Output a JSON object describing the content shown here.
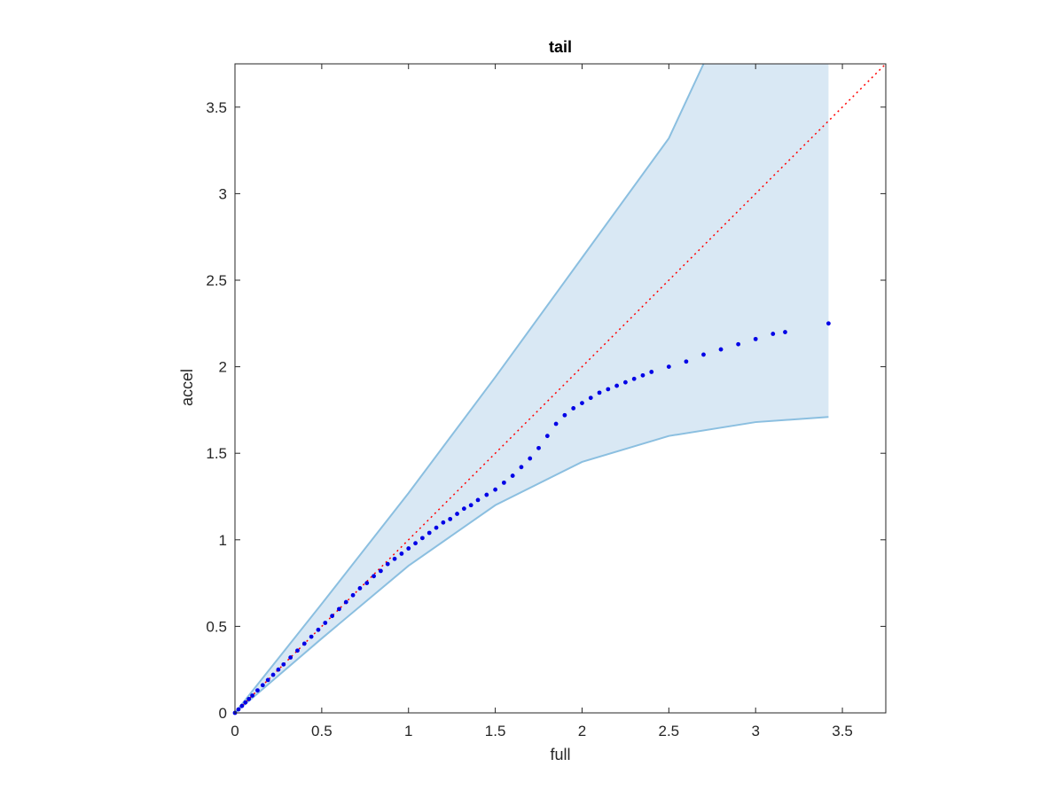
{
  "chart_data": {
    "type": "scatter",
    "title": "tail",
    "xlabel": "full",
    "ylabel": "accel",
    "xlim": [
      0,
      3.75
    ],
    "ylim": [
      0,
      3.75
    ],
    "xticks": [
      0,
      0.5,
      1,
      1.5,
      2,
      2.5,
      3,
      3.5
    ],
    "xtick_labels": [
      "0",
      "0.5",
      "1",
      "1.5",
      "2",
      "2.5",
      "3",
      "3.5"
    ],
    "yticks": [
      0,
      0.5,
      1,
      1.5,
      2,
      2.5,
      3,
      3.5
    ],
    "ytick_labels": [
      "0",
      "0.5",
      "1",
      "1.5",
      "2",
      "2.5",
      "3",
      "3.5"
    ],
    "grid": false,
    "colors": {
      "points": "#0000e6",
      "reference": "#ff0000",
      "band_fill": "#d9e8f4",
      "band_edge": "#8bbfe0",
      "axes": "#262626"
    },
    "band": {
      "upper": [
        [
          0,
          0
        ],
        [
          0.5,
          0.63
        ],
        [
          1,
          1.27
        ],
        [
          1.5,
          1.94
        ],
        [
          2,
          2.63
        ],
        [
          2.5,
          3.32
        ],
        [
          2.7,
          3.75
        ],
        [
          3.42,
          3.75
        ]
      ],
      "lower": [
        [
          0,
          0
        ],
        [
          0.5,
          0.43
        ],
        [
          1,
          0.85
        ],
        [
          1.5,
          1.2
        ],
        [
          2,
          1.45
        ],
        [
          2.5,
          1.6
        ],
        [
          3,
          1.68
        ],
        [
          3.42,
          1.71
        ]
      ]
    },
    "reference_line": [
      [
        0,
        0
      ],
      [
        3.75,
        3.75
      ]
    ],
    "points": [
      [
        0.0,
        0.0
      ],
      [
        0.02,
        0.02
      ],
      [
        0.04,
        0.04
      ],
      [
        0.06,
        0.06
      ],
      [
        0.08,
        0.08
      ],
      [
        0.1,
        0.1
      ],
      [
        0.13,
        0.13
      ],
      [
        0.16,
        0.16
      ],
      [
        0.19,
        0.19
      ],
      [
        0.22,
        0.22
      ],
      [
        0.25,
        0.25
      ],
      [
        0.28,
        0.28
      ],
      [
        0.32,
        0.32
      ],
      [
        0.36,
        0.36
      ],
      [
        0.4,
        0.4
      ],
      [
        0.44,
        0.44
      ],
      [
        0.48,
        0.48
      ],
      [
        0.52,
        0.52
      ],
      [
        0.56,
        0.56
      ],
      [
        0.6,
        0.6
      ],
      [
        0.64,
        0.64
      ],
      [
        0.68,
        0.68
      ],
      [
        0.72,
        0.72
      ],
      [
        0.76,
        0.75
      ],
      [
        0.8,
        0.79
      ],
      [
        0.84,
        0.82
      ],
      [
        0.88,
        0.86
      ],
      [
        0.92,
        0.89
      ],
      [
        0.96,
        0.92
      ],
      [
        1.0,
        0.95
      ],
      [
        1.04,
        0.98
      ],
      [
        1.08,
        1.01
      ],
      [
        1.12,
        1.04
      ],
      [
        1.16,
        1.07
      ],
      [
        1.2,
        1.1
      ],
      [
        1.24,
        1.12
      ],
      [
        1.28,
        1.15
      ],
      [
        1.32,
        1.18
      ],
      [
        1.36,
        1.2
      ],
      [
        1.4,
        1.23
      ],
      [
        1.45,
        1.26
      ],
      [
        1.5,
        1.29
      ],
      [
        1.55,
        1.33
      ],
      [
        1.6,
        1.37
      ],
      [
        1.65,
        1.42
      ],
      [
        1.7,
        1.47
      ],
      [
        1.75,
        1.53
      ],
      [
        1.8,
        1.6
      ],
      [
        1.85,
        1.67
      ],
      [
        1.9,
        1.72
      ],
      [
        1.95,
        1.76
      ],
      [
        2.0,
        1.79
      ],
      [
        2.05,
        1.82
      ],
      [
        2.1,
        1.85
      ],
      [
        2.15,
        1.87
      ],
      [
        2.2,
        1.89
      ],
      [
        2.25,
        1.91
      ],
      [
        2.3,
        1.93
      ],
      [
        2.35,
        1.95
      ],
      [
        2.4,
        1.97
      ],
      [
        2.5,
        2.0
      ],
      [
        2.6,
        2.03
      ],
      [
        2.7,
        2.07
      ],
      [
        2.8,
        2.1
      ],
      [
        2.9,
        2.13
      ],
      [
        3.0,
        2.16
      ],
      [
        3.1,
        2.19
      ],
      [
        3.17,
        2.2
      ],
      [
        3.42,
        2.25
      ]
    ]
  }
}
